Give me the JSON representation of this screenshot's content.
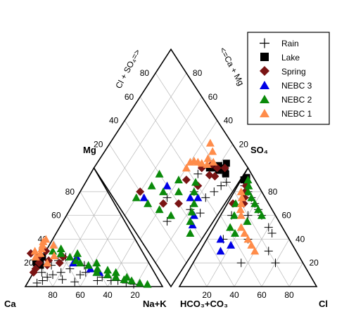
{
  "chart_data": {
    "type": "scatter",
    "plot": "piper",
    "grid": true,
    "legend_position": "top-right",
    "ticks": [
      "20",
      "40",
      "60",
      "80"
    ],
    "labels": {
      "ca": "Ca",
      "mg": "Mg",
      "nak": "Na+K",
      "hco3": "HCO₃+CO₃",
      "so4": "SO₄",
      "cl": "Cl",
      "cl_so4_axis": "Cl + SO₄=>",
      "ca_mg_axis": "<=Ca + Mg"
    },
    "series": [
      {
        "name": "Rain",
        "marker": "plus",
        "color": "#000000",
        "cation_points": [
          [
            75,
            10
          ],
          [
            68,
            12
          ],
          [
            80,
            8
          ],
          [
            60,
            15
          ],
          [
            55,
            10
          ],
          [
            50,
            12
          ],
          [
            40,
            8
          ],
          [
            35,
            5
          ],
          [
            30,
            5
          ],
          [
            25,
            3
          ],
          [
            20,
            2
          ],
          [
            85,
            5
          ],
          [
            70,
            6
          ],
          [
            62,
            4
          ],
          [
            45,
            5
          ],
          [
            90,
            3
          ],
          [
            72,
            18
          ],
          [
            65,
            22
          ],
          [
            58,
            25
          ],
          [
            48,
            18
          ],
          [
            76,
            28
          ],
          [
            82,
            12
          ]
        ],
        "anion_points": [
          [
            40,
            50
          ],
          [
            30,
            60
          ],
          [
            20,
            60
          ],
          [
            10,
            80
          ],
          [
            20,
            70
          ],
          [
            5,
            85
          ],
          [
            15,
            75
          ],
          [
            25,
            65
          ],
          [
            8,
            60
          ],
          [
            12,
            40
          ],
          [
            30,
            40
          ],
          [
            50,
            30
          ],
          [
            60,
            20
          ],
          [
            35,
            20
          ],
          [
            45,
            45
          ]
        ],
        "diamond_points": [
          [
            75,
            10
          ],
          [
            68,
            12
          ],
          [
            60,
            15
          ],
          [
            50,
            12
          ],
          [
            80,
            8
          ],
          [
            55,
            25
          ],
          [
            45,
            20
          ],
          [
            65,
            30
          ],
          [
            35,
            40
          ],
          [
            25,
            30
          ]
        ]
      },
      {
        "name": "Lake",
        "marker": "square",
        "color": "#000000",
        "cation_points": [
          [
            80,
            18
          ],
          [
            78,
            22
          ],
          [
            82,
            20
          ],
          [
            75,
            25
          ]
        ],
        "anion_points": [
          [
            2,
            90
          ],
          [
            3,
            92
          ],
          [
            5,
            88
          ]
        ],
        "diamond_points": [
          [
            80,
            18
          ],
          [
            78,
            22
          ],
          [
            82,
            20
          ],
          [
            75,
            25
          ],
          [
            85,
            15
          ],
          [
            83,
            12
          ],
          [
            88,
            16
          ]
        ]
      },
      {
        "name": "Spring",
        "marker": "diamond",
        "color": "#7a1414",
        "cation_points": [
          [
            85,
            15
          ],
          [
            80,
            20
          ],
          [
            75,
            18
          ],
          [
            78,
            25
          ],
          [
            72,
            22
          ],
          [
            70,
            30
          ],
          [
            65,
            20
          ],
          [
            60,
            25
          ],
          [
            82,
            28
          ],
          [
            88,
            12
          ]
        ],
        "anion_points": [
          [
            8,
            80
          ],
          [
            10,
            75
          ],
          [
            12,
            70
          ],
          [
            6,
            85
          ],
          [
            4,
            70
          ]
        ],
        "diamond_points": [
          [
            85,
            15
          ],
          [
            80,
            20
          ],
          [
            75,
            18
          ],
          [
            78,
            25
          ],
          [
            72,
            22
          ],
          [
            70,
            30
          ],
          [
            60,
            25
          ],
          [
            55,
            35
          ],
          [
            40,
            30
          ],
          [
            30,
            40
          ],
          [
            20,
            60
          ]
        ]
      },
      {
        "name": "NEBC 3",
        "marker": "triangle",
        "color": "#0000e6",
        "cation_points": [
          [
            55,
            20
          ],
          [
            45,
            15
          ],
          [
            40,
            12
          ],
          [
            50,
            25
          ]
        ],
        "anion_points": [
          [
            15,
            30
          ],
          [
            10,
            40
          ],
          [
            20,
            35
          ]
        ],
        "diamond_points": [
          [
            55,
            20
          ],
          [
            45,
            15
          ],
          [
            40,
            12
          ],
          [
            50,
            25
          ],
          [
            40,
            45
          ],
          [
            20,
            55
          ]
        ]
      },
      {
        "name": "NEBC 2",
        "marker": "triangle",
        "color": "#0a8a0a",
        "cation_points": [
          [
            60,
            28
          ],
          [
            55,
            25
          ],
          [
            50,
            20
          ],
          [
            45,
            18
          ],
          [
            40,
            15
          ],
          [
            35,
            10
          ],
          [
            30,
            8
          ],
          [
            25,
            6
          ],
          [
            20,
            5
          ],
          [
            15,
            3
          ],
          [
            10,
            2
          ],
          [
            65,
            30
          ],
          [
            58,
            32
          ],
          [
            52,
            22
          ],
          [
            42,
            12
          ],
          [
            38,
            20
          ],
          [
            33,
            14
          ],
          [
            28,
            12
          ],
          [
            22,
            8
          ],
          [
            48,
            28
          ]
        ],
        "anion_points": [
          [
            5,
            90
          ],
          [
            8,
            85
          ],
          [
            10,
            80
          ],
          [
            15,
            75
          ],
          [
            20,
            70
          ],
          [
            25,
            65
          ],
          [
            30,
            60
          ],
          [
            10,
            60
          ],
          [
            12,
            50
          ],
          [
            18,
            45
          ],
          [
            22,
            55
          ],
          [
            6,
            70
          ]
        ],
        "diamond_points": [
          [
            60,
            28
          ],
          [
            55,
            25
          ],
          [
            50,
            20
          ],
          [
            45,
            18
          ],
          [
            40,
            15
          ],
          [
            35,
            10
          ],
          [
            30,
            30
          ],
          [
            25,
            40
          ],
          [
            20,
            50
          ],
          [
            15,
            60
          ],
          [
            45,
            35
          ],
          [
            35,
            45
          ],
          [
            50,
            40
          ],
          [
            40,
            55
          ],
          [
            30,
            55
          ]
        ]
      },
      {
        "name": "NEBC 1",
        "marker": "triangle",
        "color": "#ff8c4a",
        "cation_points": [
          [
            75,
            28
          ],
          [
            72,
            32
          ],
          [
            70,
            35
          ],
          [
            68,
            38
          ],
          [
            65,
            40
          ],
          [
            78,
            30
          ],
          [
            80,
            25
          ],
          [
            74,
            20
          ],
          [
            62,
            35
          ],
          [
            66,
            26
          ]
        ],
        "anion_points": [
          [
            5,
            80
          ],
          [
            8,
            75
          ],
          [
            10,
            70
          ],
          [
            12,
            65
          ],
          [
            15,
            60
          ],
          [
            20,
            50
          ],
          [
            25,
            45
          ],
          [
            30,
            40
          ],
          [
            35,
            35
          ],
          [
            40,
            30
          ]
        ],
        "diamond_points": [
          [
            75,
            28
          ],
          [
            72,
            32
          ],
          [
            70,
            35
          ],
          [
            68,
            38
          ],
          [
            65,
            40
          ],
          [
            78,
            30
          ],
          [
            80,
            25
          ],
          [
            84,
            30
          ],
          [
            86,
            35
          ],
          [
            60,
            40
          ]
        ]
      }
    ]
  }
}
